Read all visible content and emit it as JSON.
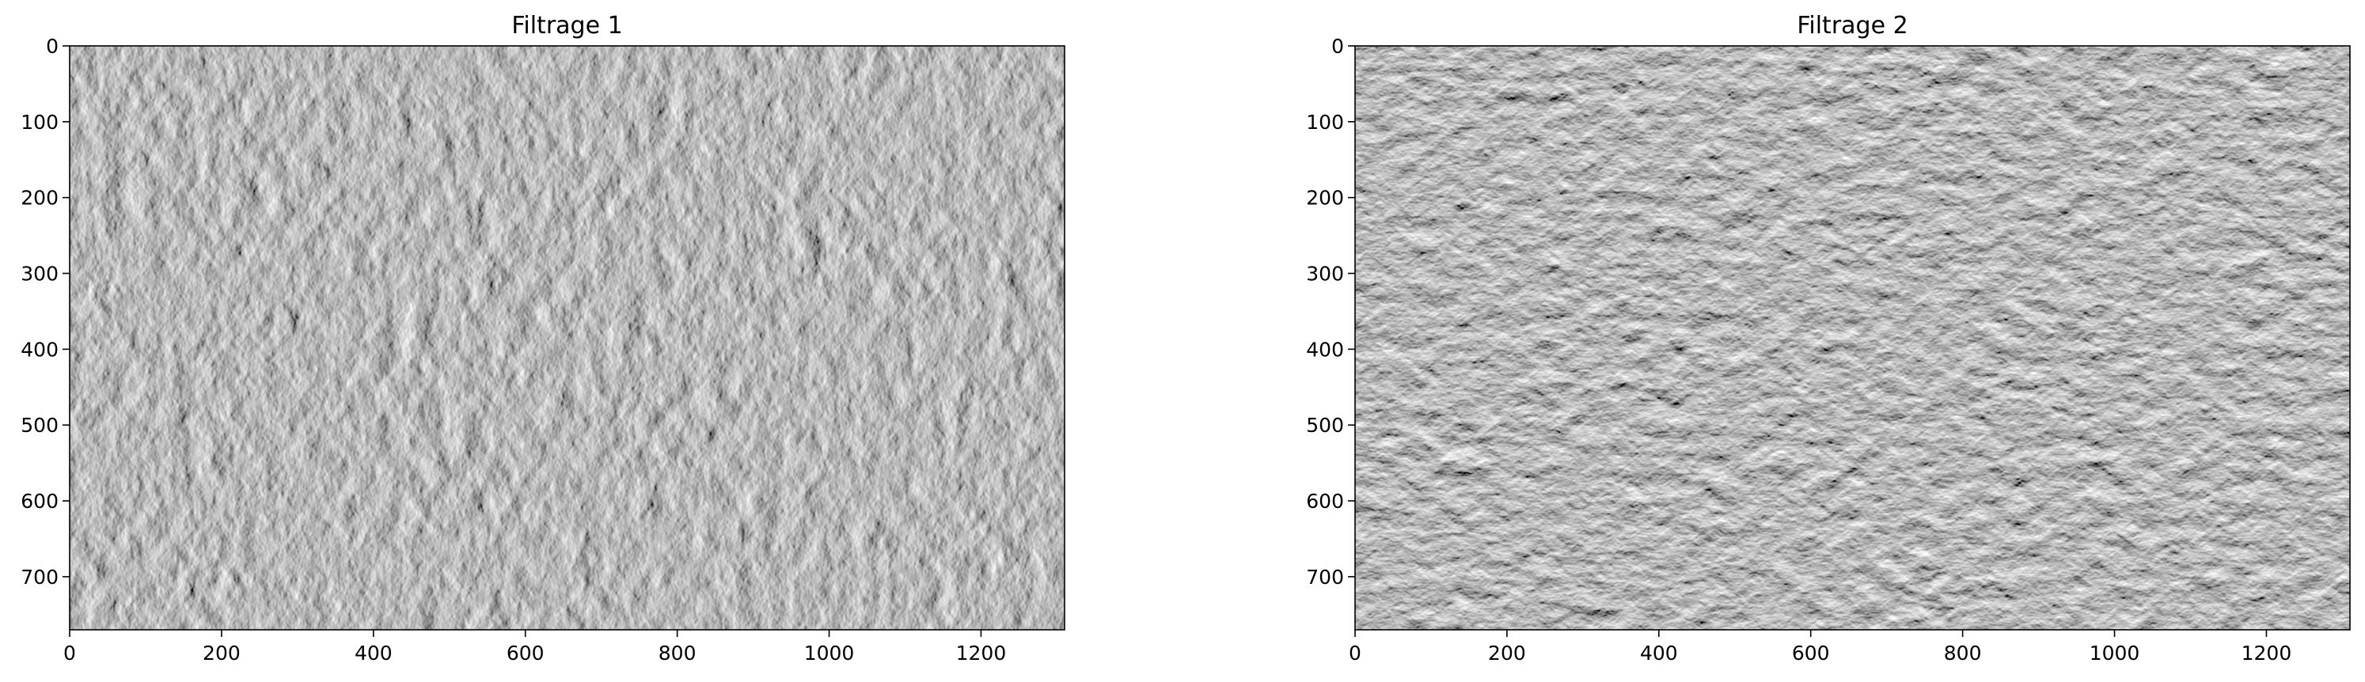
{
  "chart_data": [
    {
      "type": "image",
      "title": "Filtrage 1",
      "xlim": [
        0,
        1310
      ],
      "ylim": [
        770,
        0
      ],
      "x_ticks": [
        0,
        200,
        400,
        600,
        800,
        1000,
        1200
      ],
      "y_ticks": [
        0,
        100,
        200,
        300,
        400,
        500,
        600,
        700
      ],
      "image_description": "grayscale embossed edge-filtered aerial view of city blocks (vertical edge emphasis)"
    },
    {
      "type": "image",
      "title": "Filtrage 2",
      "xlim": [
        0,
        1310
      ],
      "ylim": [
        770,
        0
      ],
      "x_ticks": [
        0,
        200,
        400,
        600,
        800,
        1000,
        1200
      ],
      "y_ticks": [
        0,
        100,
        200,
        300,
        400,
        500,
        600,
        700
      ],
      "image_description": "grayscale embossed edge-filtered aerial view of city blocks (horizontal edge emphasis)"
    }
  ],
  "colors": {
    "image_gray": "#7d7d7d",
    "axis": "#000000"
  }
}
